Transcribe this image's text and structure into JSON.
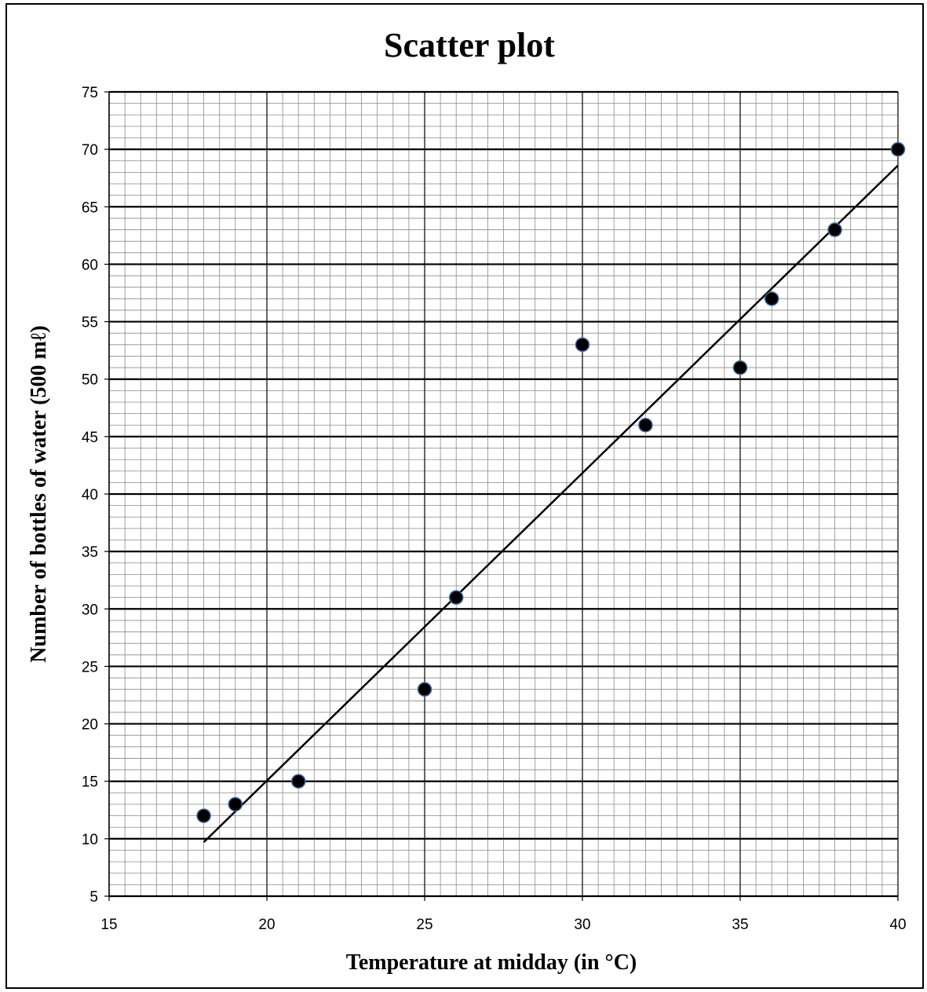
{
  "chart_data": {
    "type": "scatter",
    "title": "Scatter plot",
    "xlabel": "Temperature at midday (in °C)",
    "ylabel": "Number of bottles of water (500 mℓ)",
    "xlim": [
      15,
      40
    ],
    "ylim": [
      5,
      75
    ],
    "xticks": [
      15,
      20,
      25,
      30,
      35,
      40
    ],
    "yticks": [
      5,
      10,
      15,
      20,
      25,
      30,
      35,
      40,
      45,
      50,
      55,
      60,
      65,
      70,
      75
    ],
    "grid": true,
    "legend": "none",
    "points": [
      {
        "x": 18,
        "y": 12
      },
      {
        "x": 19,
        "y": 13
      },
      {
        "x": 21,
        "y": 15
      },
      {
        "x": 25,
        "y": 23
      },
      {
        "x": 26,
        "y": 31
      },
      {
        "x": 30,
        "y": 53
      },
      {
        "x": 32,
        "y": 46
      },
      {
        "x": 35,
        "y": 51
      },
      {
        "x": 36,
        "y": 57
      },
      {
        "x": 38,
        "y": 63
      },
      {
        "x": 40,
        "y": 70
      }
    ],
    "trendline": {
      "x_start": 18,
      "y_start": 9.7,
      "x_end": 40,
      "y_end": 68.6
    },
    "colors": {
      "point_fill": "#000000",
      "point_stroke": "#3a6aa8",
      "line": "#000000",
      "grid": "#000000"
    }
  }
}
